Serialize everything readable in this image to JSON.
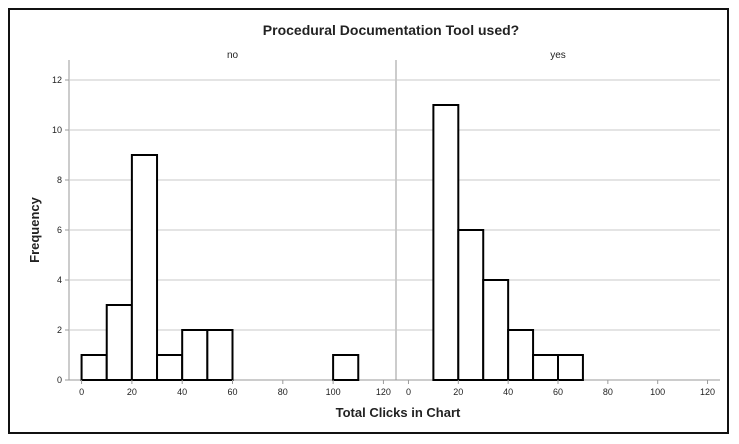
{
  "chart_data": {
    "type": "bar",
    "title": "Procedural Documentation Tool used?",
    "xlabel": "Total Clicks in Chart",
    "ylabel": "Frequency",
    "ylim": [
      0,
      12
    ],
    "xlim": [
      -5,
      125
    ],
    "grid": "horizontal",
    "y_ticks": [
      "0",
      "2",
      "4",
      "6",
      "8",
      "10",
      "12"
    ],
    "x_ticks": [
      "0",
      "20",
      "40",
      "60",
      "80",
      "100",
      "120"
    ],
    "bin_width": 10,
    "panels": [
      {
        "label": "no",
        "bins": [
          {
            "x0": 0,
            "x1": 10,
            "value": 1
          },
          {
            "x0": 10,
            "x1": 20,
            "value": 3
          },
          {
            "x0": 20,
            "x1": 30,
            "value": 9
          },
          {
            "x0": 30,
            "x1": 40,
            "value": 1
          },
          {
            "x0": 40,
            "x1": 50,
            "value": 2
          },
          {
            "x0": 50,
            "x1": 60,
            "value": 2
          },
          {
            "x0": 100,
            "x1": 110,
            "value": 1
          }
        ]
      },
      {
        "label": "yes",
        "bins": [
          {
            "x0": 10,
            "x1": 20,
            "value": 11
          },
          {
            "x0": 20,
            "x1": 30,
            "value": 6
          },
          {
            "x0": 30,
            "x1": 40,
            "value": 4
          },
          {
            "x0": 40,
            "x1": 50,
            "value": 2
          },
          {
            "x0": 50,
            "x1": 60,
            "value": 1
          },
          {
            "x0": 60,
            "x1": 70,
            "value": 1
          }
        ]
      }
    ],
    "colors": {
      "bar_fill": "#ffffff",
      "bar_stroke": "#000000",
      "grid": "#c8c8c8",
      "axis": "#9a9a9a"
    }
  }
}
